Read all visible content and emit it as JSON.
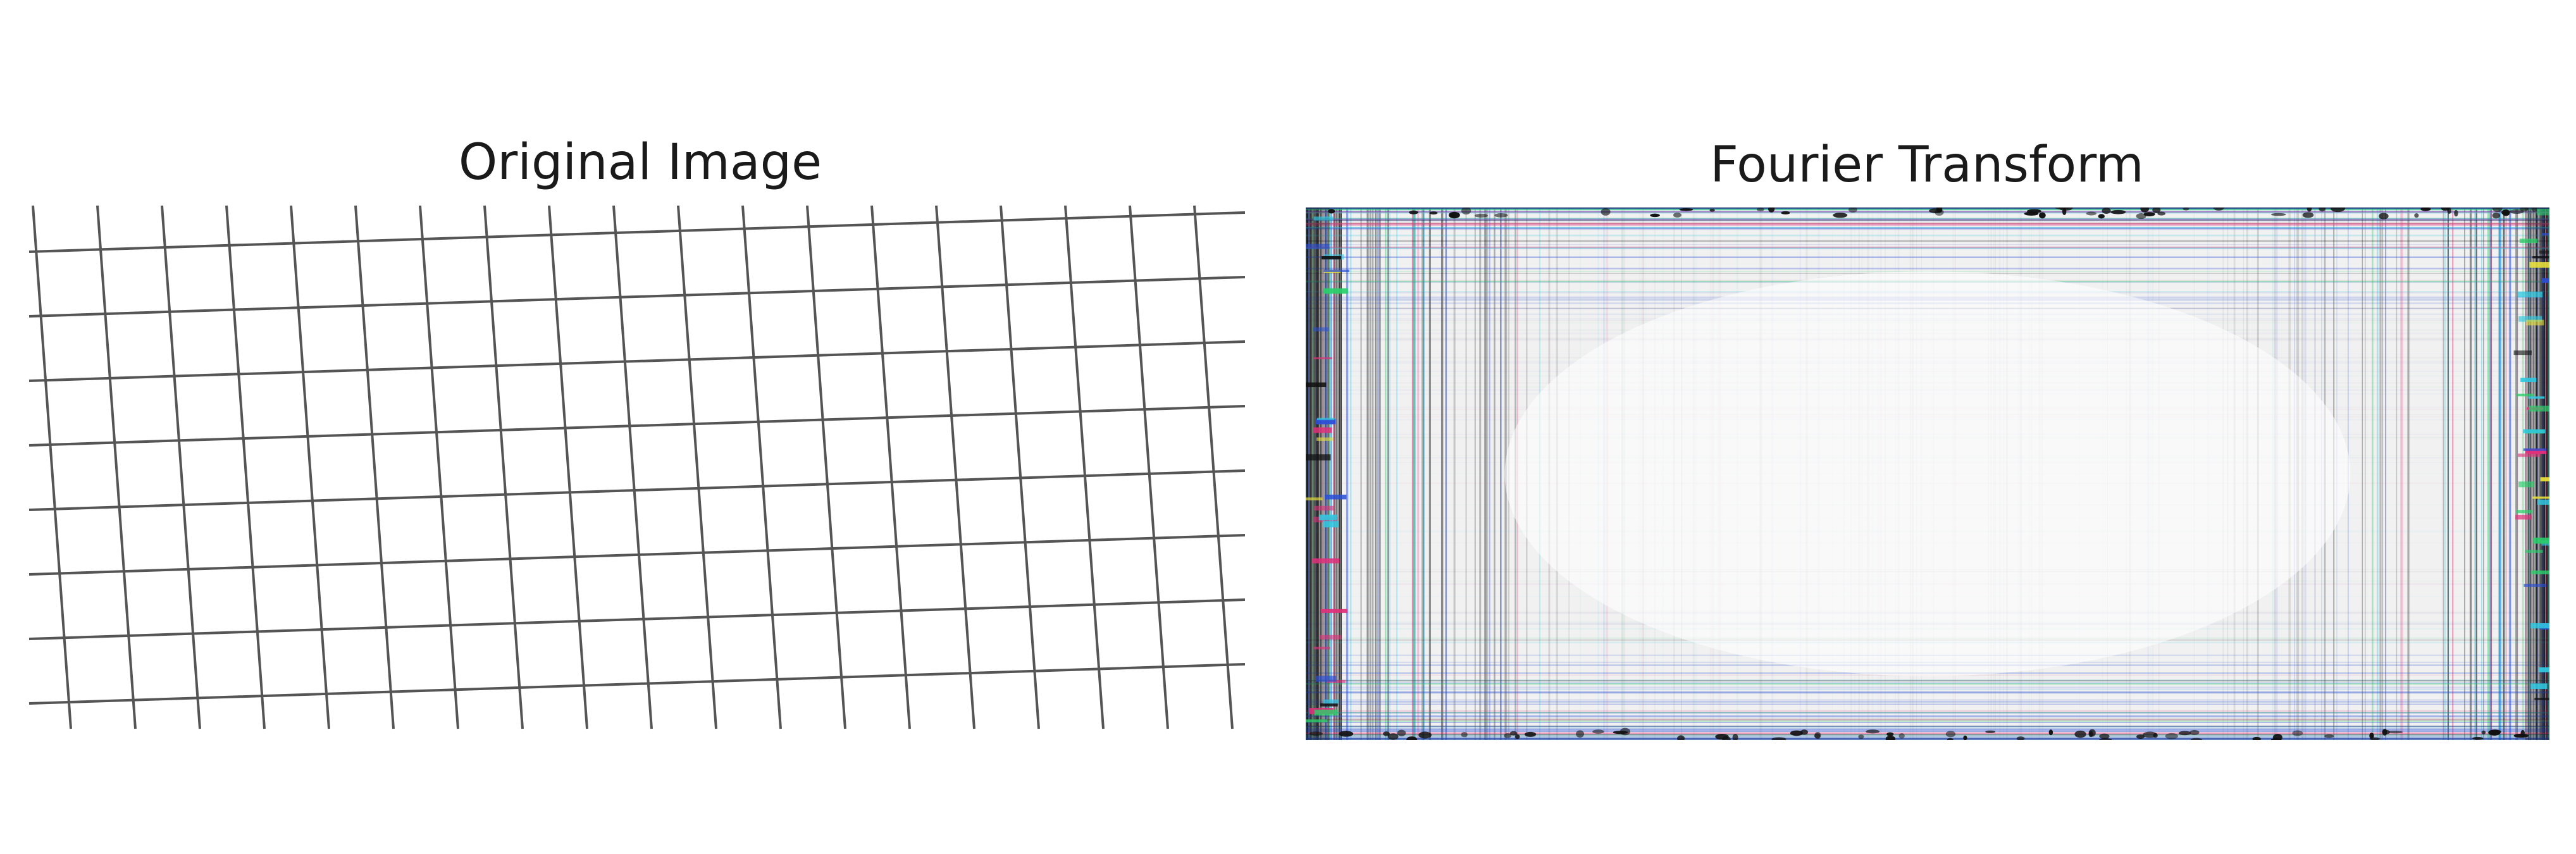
{
  "figure": {
    "left_panel": {
      "title": "Original Image",
      "grid_lines": {
        "color": "#555555"
      }
    },
    "right_panel": {
      "title": "Fourier Transform",
      "colors": {
        "dark": "#111111",
        "blue": "#2a4fd6",
        "red": "#e0307a",
        "green": "#2ad06a",
        "yellow": "#e8e03a",
        "cyan": "#30c8e0",
        "haze": "#f1f1f1"
      }
    }
  }
}
